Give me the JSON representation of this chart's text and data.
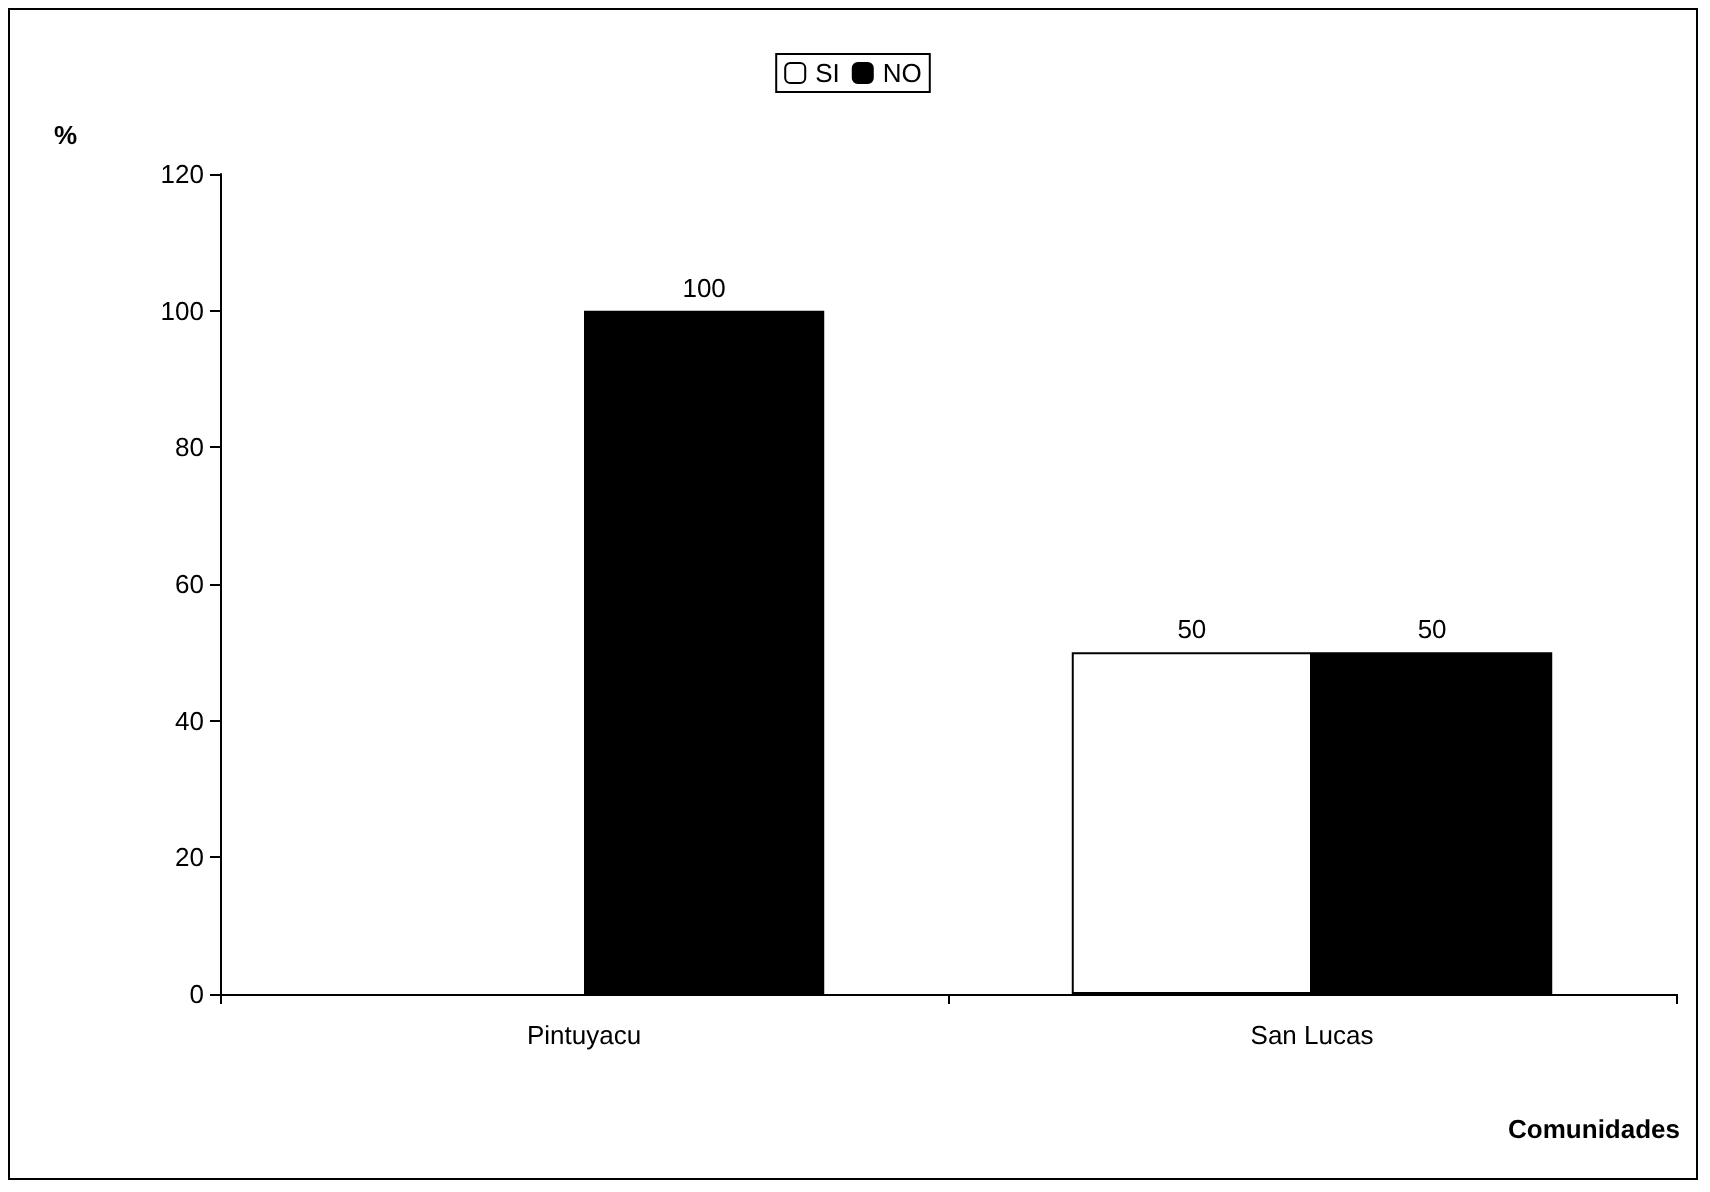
{
  "chart_data": {
    "type": "bar",
    "xlabel": "Comunidades",
    "ylabel": "%",
    "categories": [
      "Pintuyacu",
      "San Lucas"
    ],
    "series": [
      {
        "name": "SI",
        "color": "#ffffff",
        "values": [
          null,
          50
        ],
        "value_labels": [
          null,
          "50"
        ]
      },
      {
        "name": "NO",
        "color": "#000000",
        "values": [
          100,
          50
        ],
        "value_labels": [
          "100",
          "50"
        ]
      }
    ],
    "ylim": [
      0,
      120
    ],
    "yticks": [
      0,
      20,
      40,
      60,
      80,
      100,
      120
    ],
    "grid": false,
    "legend": "top"
  }
}
